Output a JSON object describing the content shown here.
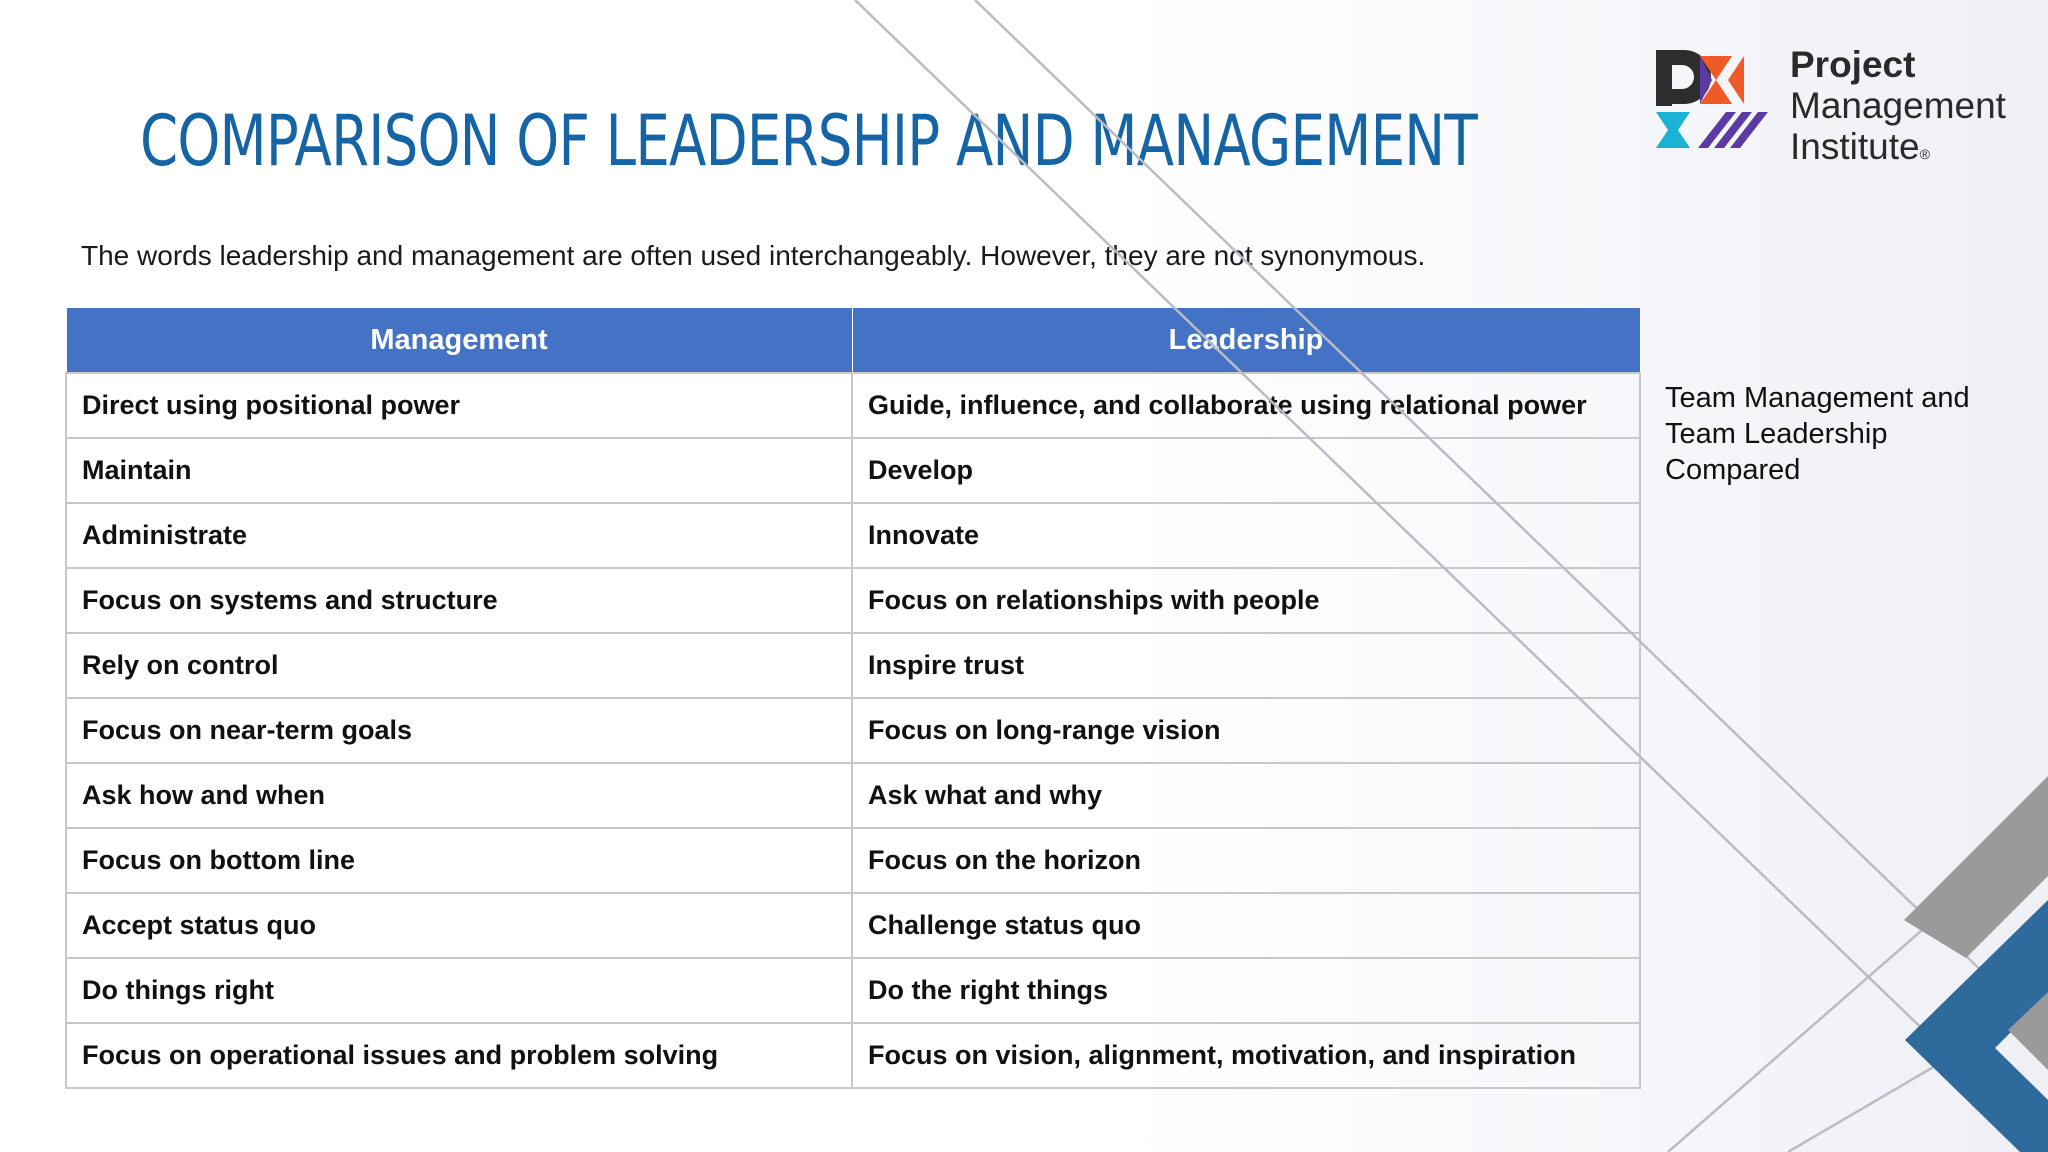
{
  "slide": {
    "title": "COMPARISON OF LEADERSHIP AND MANAGEMENT",
    "subtitle": "The words leadership and management are often used interchangeably. However, they are not synonymous.",
    "side_note": "Team Management and Team Leadership Compared"
  },
  "logo": {
    "line1": "Project",
    "line2": "Management",
    "line3": "Institute",
    "registered_mark": "®",
    "colors": {
      "dark": "#2d2d2d",
      "orange": "#f05a28",
      "teal": "#19b3d3",
      "purple": "#5c3aa3"
    }
  },
  "table": {
    "headers": [
      "Management",
      "Leadership"
    ],
    "header_color": "#4472c4",
    "rows": [
      [
        "Direct using positional power",
        "Guide, influence, and collaborate using relational power"
      ],
      [
        "Maintain",
        "Develop"
      ],
      [
        "Administrate",
        "Innovate"
      ],
      [
        "Focus on systems and structure",
        "Focus on relationships with people"
      ],
      [
        "Rely on control",
        "Inspire trust"
      ],
      [
        "Focus on near-term goals",
        "Focus on long-range vision"
      ],
      [
        "Ask how and when",
        "Ask what and why"
      ],
      [
        "Focus on bottom line",
        "Focus on the horizon"
      ],
      [
        "Accept status quo",
        "Challenge status quo"
      ],
      [
        "Do things right",
        "Do the right things"
      ],
      [
        "Focus on operational issues and problem solving",
        "Focus on vision, alignment, motivation, and inspiration"
      ]
    ]
  },
  "theme": {
    "title_color": "#1565a6",
    "accent_blue": "#2e6a9c",
    "accent_gray": "#9a9a9a"
  }
}
